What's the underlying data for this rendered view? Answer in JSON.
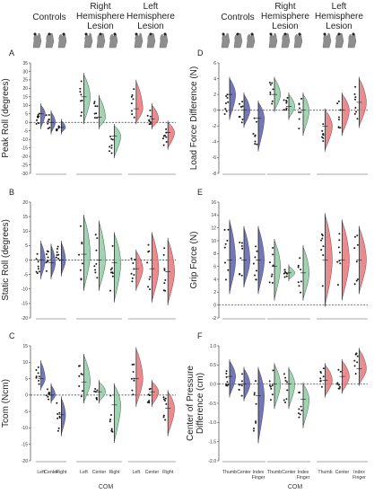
{
  "colors": {
    "controls": "#5A5FA8",
    "right_lesion": "#8FCBA3",
    "left_lesion": "#E4787C"
  },
  "group_headers": {
    "left": [
      "Controls",
      "Right\nHemisphere\nLesion",
      "Left\nHemisphere\nLesion"
    ],
    "right": [
      "Controls",
      "Right\nHemisphere\nLesion",
      "Left\nHemisphere\nLesion"
    ]
  },
  "icons": [
    "hand-grasp-icon",
    "hand-grasp-icon",
    "hand-grasp-icon"
  ],
  "xlabels": {
    "left": {
      "ticks": [
        "Left",
        "Center",
        "Right"
      ],
      "title": "COM"
    },
    "right": {
      "ticks": [
        "Thumb",
        "Center",
        "Index\nFinger"
      ],
      "title": "COM"
    }
  },
  "chart_data": [
    {
      "panel": "A",
      "type": "violin",
      "ylabel": "Peak Roll (degrees)",
      "ylim": [
        -30,
        35
      ],
      "yticks": [
        -30,
        -25,
        -20,
        -15,
        -10,
        -5,
        0,
        5,
        10,
        15,
        20,
        25,
        30,
        35
      ],
      "ref": 0,
      "groups": [
        {
          "name": "Controls",
          "medians": [
            5,
            0,
            -3
          ],
          "ranges": [
            [
              -3,
              10
            ],
            [
              -6,
              6
            ],
            [
              -6,
              1
            ]
          ]
        },
        {
          "name": "Right Hemisphere Lesion",
          "medians": [
            15,
            3,
            -8
          ],
          "ranges": [
            [
              0,
              28
            ],
            [
              -3,
              15
            ],
            [
              -20,
              -2
            ]
          ]
        },
        {
          "name": "Left Hemisphere Lesion",
          "medians": [
            8,
            2,
            -6
          ],
          "ranges": [
            [
              0,
              24
            ],
            [
              -3,
              10
            ],
            [
              -15,
              0
            ]
          ]
        }
      ]
    },
    {
      "panel": "B",
      "type": "violin",
      "ylabel": "Static Roll (degrees)",
      "ylim": [
        -20,
        20
      ],
      "yticks": [
        -20,
        -15,
        -10,
        -5,
        0,
        5,
        10,
        15,
        20
      ],
      "ref": 0,
      "groups": [
        {
          "name": "Controls",
          "medians": [
            0,
            -1,
            0
          ],
          "ranges": [
            [
              -6,
              6
            ],
            [
              -6,
              5
            ],
            [
              -5,
              6
            ]
          ]
        },
        {
          "name": "Right Hemisphere Lesion",
          "medians": [
            2,
            0,
            -1
          ],
          "ranges": [
            [
              -10,
              15
            ],
            [
              -10,
              13
            ],
            [
              -14,
              9
            ]
          ]
        },
        {
          "name": "Left Hemisphere Lesion",
          "medians": [
            -3,
            -3,
            -4
          ],
          "ranges": [
            [
              -10,
              3
            ],
            [
              -14,
              9
            ],
            [
              -15,
              7
            ]
          ]
        }
      ]
    },
    {
      "panel": "C",
      "type": "violin",
      "ylabel": "Tcom (Ncm)",
      "ylim": [
        -20,
        15
      ],
      "yticks": [
        -20,
        -15,
        -10,
        -5,
        0,
        5,
        10,
        15
      ],
      "ref": 0,
      "groups": [
        {
          "name": "Controls",
          "medians": [
            5,
            0,
            -6
          ],
          "ranges": [
            [
              2,
              10
            ],
            [
              -2,
              3
            ],
            [
              -12,
              -1
            ]
          ]
        },
        {
          "name": "Right Hemisphere Lesion",
          "medians": [
            4,
            1,
            -3
          ],
          "ranges": [
            [
              -2,
              12
            ],
            [
              -2,
              4
            ],
            [
              -14,
              3
            ]
          ]
        },
        {
          "name": "Left Hemisphere Lesion",
          "medians": [
            5,
            1,
            -4
          ],
          "ranges": [
            [
              -3,
              14
            ],
            [
              -3,
              4
            ],
            [
              -12,
              1
            ]
          ]
        }
      ]
    },
    {
      "panel": "D",
      "type": "violin",
      "ylabel": "Load Force Difference (N)",
      "ylim": [
        -8,
        6
      ],
      "yticks": [
        -8,
        -6,
        -4,
        -2,
        0,
        2,
        4,
        6
      ],
      "ref": 0,
      "groups": [
        {
          "name": "Controls",
          "medians": [
            2,
            0,
            -1
          ],
          "ranges": [
            [
              -1,
              4
            ],
            [
              -2,
              2
            ],
            [
              -5,
              1
            ]
          ]
        },
        {
          "name": "Right Hemisphere Lesion",
          "medians": [
            2,
            0.5,
            0
          ],
          "ranges": [
            [
              0,
              4
            ],
            [
              -1,
              2
            ],
            [
              -3,
              2
            ]
          ]
        },
        {
          "name": "Left Hemisphere Lesion",
          "medians": [
            -2,
            0,
            1
          ],
          "ranges": [
            [
              -5,
              0
            ],
            [
              -3,
              2
            ],
            [
              -2,
              4
            ]
          ]
        }
      ]
    },
    {
      "panel": "E",
      "type": "violin",
      "ylabel": "Grip Force (N)",
      "ylim": [
        -2,
        16
      ],
      "yticks": [
        -2,
        0,
        2,
        4,
        6,
        8,
        10,
        12,
        14,
        16
      ],
      "ref": 0,
      "groups": [
        {
          "name": "Controls",
          "medians": [
            7,
            7,
            7
          ],
          "ranges": [
            [
              2,
              13
            ],
            [
              3,
              12
            ],
            [
              2,
              12
            ]
          ]
        },
        {
          "name": "Right Hemisphere Lesion",
          "medians": [
            6,
            5,
            5
          ],
          "ranges": [
            [
              1,
              10
            ],
            [
              4,
              6
            ],
            [
              1,
              9
            ]
          ]
        },
        {
          "name": "Left Hemisphere Lesion",
          "medians": [
            7,
            7,
            7
          ],
          "ranges": [
            [
              0,
              14
            ],
            [
              1,
              13
            ],
            [
              2,
              12
            ]
          ]
        }
      ]
    },
    {
      "panel": "F",
      "type": "violin",
      "ylabel": "Center of Pressure\nDifference (cm)",
      "ylim": [
        -2.0,
        1.0
      ],
      "yticks": [
        -2.0,
        -1.5,
        -1.0,
        -0.5,
        0.0,
        0.5,
        1.0
      ],
      "ref": 0,
      "groups": [
        {
          "name": "Controls",
          "medians": [
            0.2,
            0,
            -0.3
          ],
          "ranges": [
            [
              -0.3,
              0.6
            ],
            [
              -0.4,
              0.4
            ],
            [
              -1.5,
              0.4
            ]
          ]
        },
        {
          "name": "Right Hemisphere Lesion",
          "medians": [
            0,
            0,
            -0.4
          ],
          "ranges": [
            [
              -0.6,
              0.5
            ],
            [
              -0.6,
              0.4
            ],
            [
              -1.1,
              0
            ]
          ]
        },
        {
          "name": "Left Hemisphere Lesion",
          "medians": [
            0.1,
            0.2,
            0.4
          ],
          "ranges": [
            [
              -0.3,
              0.5
            ],
            [
              -0.2,
              0.6
            ],
            [
              0,
              0.9
            ]
          ]
        }
      ]
    }
  ]
}
